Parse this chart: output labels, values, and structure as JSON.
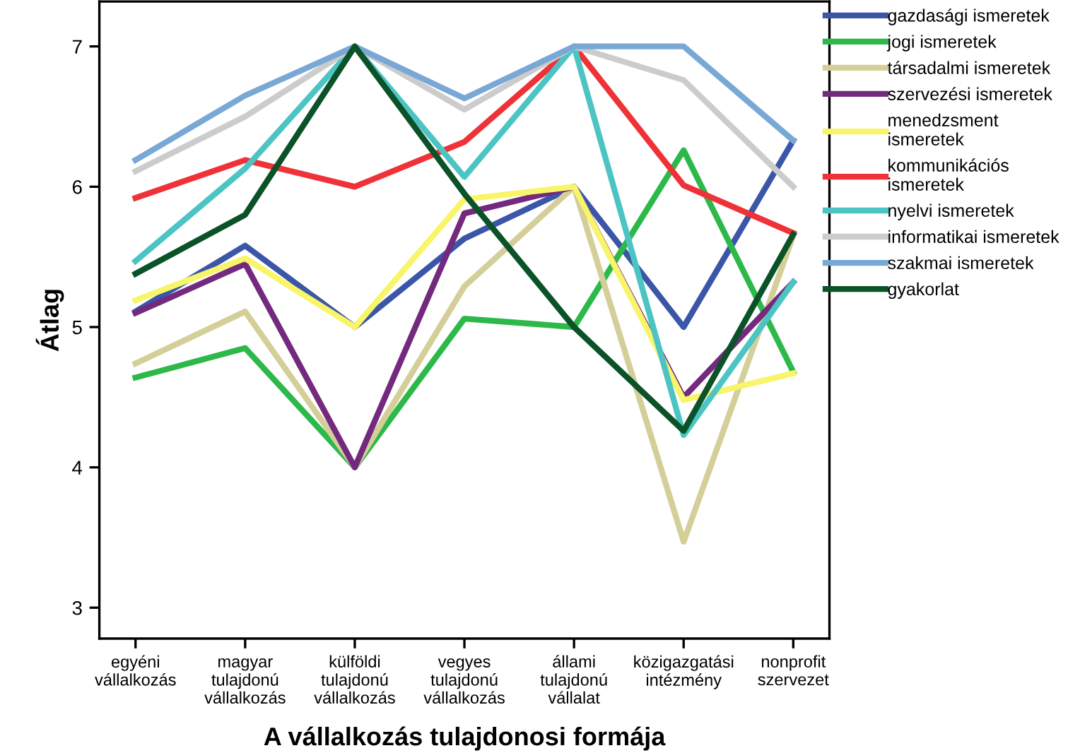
{
  "chart_data": {
    "type": "line",
    "xlabel": "A vállalkozás tulajdonosi formája",
    "ylabel": "Átlag",
    "categories": [
      "egyéni\nvállalkozás",
      "magyar\ntulajdonú\nvállalkozás",
      "külföldi\ntulajdonú\nvállalkozás",
      "vegyes\ntulajdonú\nvállalkozás",
      "állami\ntulajdonú\nvállalat",
      "közigazgatási\nintézmény",
      "nonprofit\nszervezet"
    ],
    "series": [
      {
        "name": "gazdasági ismeretek",
        "color": "#3b55a8",
        "values": [
          5.11,
          5.58,
          5.0,
          5.63,
          6.0,
          5.0,
          6.33
        ]
      },
      {
        "name": "jogi ismeretek",
        "color": "#2db84a",
        "values": [
          4.64,
          4.85,
          4.0,
          5.06,
          5.0,
          6.26,
          4.68
        ]
      },
      {
        "name": "társadalmi ismeretek",
        "color": "#d4cf98",
        "values": [
          4.74,
          5.11,
          4.0,
          5.29,
          6.0,
          3.47,
          5.65
        ]
      },
      {
        "name": "szervezési ismeretek",
        "color": "#732a7e",
        "values": [
          5.1,
          5.45,
          4.0,
          5.81,
          6.0,
          4.5,
          5.32
        ]
      },
      {
        "name": "menedzsment\nismeretek",
        "color": "#f8f56a",
        "values": [
          5.19,
          5.49,
          5.0,
          5.91,
          6.0,
          4.48,
          4.67
        ]
      },
      {
        "name": "kommunikációs\nismeretek",
        "color": "#ee3238",
        "values": [
          5.92,
          6.19,
          6.0,
          6.32,
          7.0,
          6.01,
          5.67
        ]
      },
      {
        "name": "nyelvi ismeretek",
        "color": "#4cc4c4",
        "values": [
          5.47,
          6.13,
          7.0,
          6.07,
          7.0,
          4.23,
          5.32
        ]
      },
      {
        "name": "informatikai ismeretek",
        "color": "#cccccc",
        "values": [
          6.11,
          6.5,
          7.0,
          6.55,
          7.0,
          6.76,
          6.0
        ]
      },
      {
        "name": "szakmai ismeretek",
        "color": "#7aa8d6",
        "values": [
          6.19,
          6.65,
          7.0,
          6.63,
          7.0,
          7.0,
          6.33
        ]
      },
      {
        "name": "gyakorlat",
        "color": "#0b5228",
        "values": [
          5.38,
          5.8,
          7.0,
          5.95,
          5.0,
          4.26,
          5.66
        ]
      }
    ],
    "ylim": [
      2.78,
      7.32
    ],
    "yticks": [
      3,
      4,
      5,
      6,
      7
    ],
    "grid": false,
    "legend": "right",
    "marker": "none",
    "line_style": "solid"
  }
}
